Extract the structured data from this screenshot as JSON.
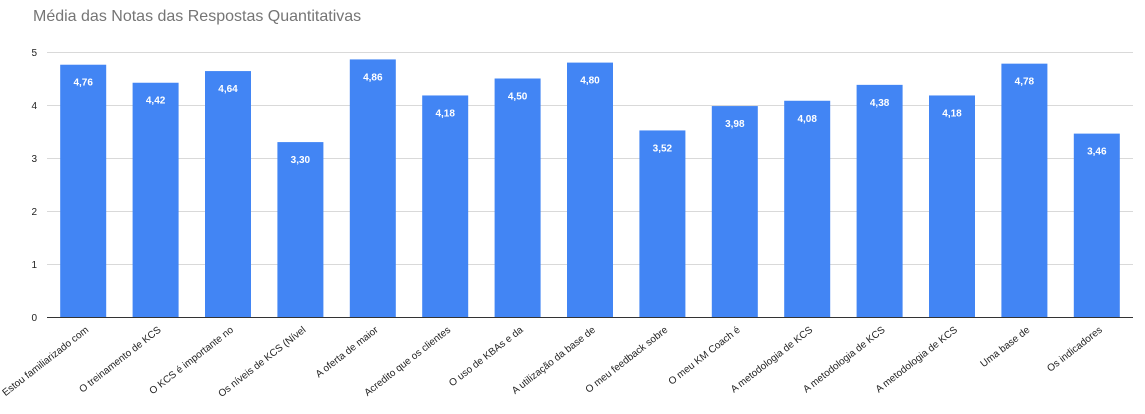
{
  "chart_data": {
    "type": "bar",
    "title": "Média das Notas das Respostas Quantitativas",
    "categories": [
      "Estou familiarizado com",
      "O treinamento de KCS",
      "O KCS é importante no",
      "Os níveis de KCS (Nível",
      "A oferta de maior",
      "Acredito que os clientes",
      "O uso de KBAs e da",
      "A utilização da base de",
      "O meu feedback sobre",
      "O meu KM Coach é",
      "A metodologia de KCS",
      "A metodologia de KCS",
      "A metodologia de KCS",
      "Uma base de",
      "Os indicadores"
    ],
    "values": [
      4.76,
      4.42,
      4.64,
      3.3,
      4.86,
      4.18,
      4.5,
      4.8,
      3.52,
      3.98,
      4.08,
      4.38,
      4.18,
      4.78,
      3.46
    ],
    "value_labels": [
      "4,76",
      "4,42",
      "4,64",
      "3,30",
      "4,86",
      "4,18",
      "4,50",
      "4,80",
      "3,52",
      "3,98",
      "4,08",
      "4,38",
      "4,18",
      "4,78",
      "3,46"
    ],
    "y_ticks": [
      0,
      1,
      2,
      3,
      4,
      5
    ],
    "ylim": [
      0,
      5
    ],
    "grid": true,
    "legend": "none",
    "bar_color": "#4285f4",
    "grid_color": "#d9d9d9",
    "axis_color": "#333333"
  }
}
